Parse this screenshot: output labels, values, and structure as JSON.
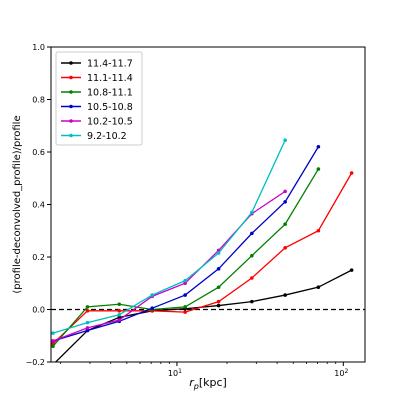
{
  "chart_data": {
    "type": "line",
    "title": "",
    "xlabel": "r_p[kpc]",
    "xlabel_main": "r",
    "xlabel_sub": "p",
    "xlabel_unit": "[kpc]",
    "ylabel": "(profile-deconvolved_profile)/profile",
    "xscale": "log",
    "xlim": [
      1.75,
      135
    ],
    "ylim": [
      -0.2,
      1.0
    ],
    "yticks": [
      -0.2,
      0.0,
      0.2,
      0.4,
      0.6,
      0.8,
      1.0
    ],
    "ytick_labels": [
      "−0.2",
      "0.0",
      "0.2",
      "0.4",
      "0.6",
      "0.8",
      "1.0"
    ],
    "xticks": [
      {
        "value": 10,
        "base": "10",
        "exp": "1"
      },
      {
        "value": 100,
        "base": "10",
        "exp": "2"
      }
    ],
    "reference_line": {
      "y": 0.0,
      "style": "dashed",
      "color": "#000000"
    },
    "legend_position": "upper-left",
    "grid": false,
    "series": [
      {
        "name": "11.4-11.7",
        "color": "#000000",
        "x": [
          1.8,
          2.9,
          4.5,
          7.1,
          11.2,
          17.8,
          28.2,
          44.7,
          70.8,
          112.2
        ],
        "y": [
          -0.21,
          -0.08,
          -0.03,
          -0.005,
          0.003,
          0.015,
          0.03,
          0.055,
          0.085,
          0.15
        ]
      },
      {
        "name": "11.1-11.4",
        "color": "#ff0000",
        "x": [
          1.8,
          2.9,
          4.5,
          7.1,
          11.2,
          17.8,
          28.2,
          44.7,
          70.8,
          112.2
        ],
        "y": [
          -0.13,
          -0.005,
          -0.005,
          -0.005,
          -0.01,
          0.03,
          0.12,
          0.235,
          0.3,
          0.52
        ]
      },
      {
        "name": "10.8-11.1",
        "color": "#008000",
        "x": [
          1.8,
          2.9,
          4.5,
          7.1,
          11.2,
          17.8,
          28.2,
          44.7,
          70.8
        ],
        "y": [
          -0.14,
          0.01,
          0.02,
          0.0,
          0.01,
          0.085,
          0.205,
          0.325,
          0.535
        ]
      },
      {
        "name": "10.5-10.8",
        "color": "#0000cd",
        "x": [
          1.8,
          2.9,
          4.5,
          7.1,
          11.2,
          17.8,
          28.2,
          44.7,
          70.8
        ],
        "y": [
          -0.12,
          -0.08,
          -0.045,
          0.005,
          0.055,
          0.155,
          0.29,
          0.41,
          0.62
        ]
      },
      {
        "name": "10.2-10.5",
        "color": "#cc00cc",
        "x": [
          1.8,
          2.9,
          4.5,
          7.1,
          11.2,
          17.8,
          28.2,
          44.7
        ],
        "y": [
          -0.12,
          -0.07,
          -0.04,
          0.05,
          0.1,
          0.225,
          0.365,
          0.45
        ]
      },
      {
        "name": "9.2-10.2",
        "color": "#00bfbf",
        "x": [
          1.8,
          2.9,
          4.5,
          7.1,
          11.2,
          17.8,
          28.2,
          44.7
        ],
        "y": [
          -0.09,
          -0.05,
          -0.02,
          0.055,
          0.11,
          0.215,
          0.37,
          0.645
        ]
      }
    ]
  }
}
